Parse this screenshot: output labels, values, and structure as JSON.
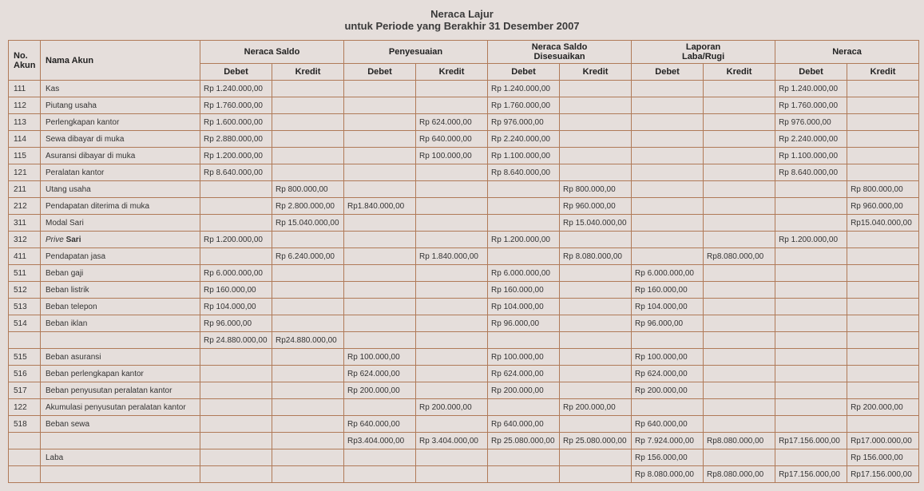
{
  "title_line1": "Neraca Lajur",
  "title_line2": "untuk Periode yang Berakhir  31 Desember 2007",
  "headers": {
    "no_akun": "No.\nAkun",
    "nama_akun": "Nama Akun",
    "groups": [
      "Neraca Saldo",
      "Penyesuaian",
      "Neraca Saldo\nDisesuaikan",
      "Laporan\nLaba/Rugi",
      "Neraca"
    ],
    "sub": {
      "debet": "Debet",
      "kredit": "Kredit"
    }
  },
  "rows": [
    {
      "no": "111",
      "name": "Kas",
      "ns_d": "Rp  1.240.000,00",
      "ns_k": "",
      "p_d": "",
      "p_k": "",
      "nsd_d": "Rp  1.240.000,00",
      "nsd_k": "",
      "lr_d": "",
      "lr_k": "",
      "n_d": "Rp  1.240.000,00",
      "n_k": ""
    },
    {
      "no": "112",
      "name": "Piutang usaha",
      "ns_d": "Rp  1.760.000,00",
      "ns_k": "",
      "p_d": "",
      "p_k": "",
      "nsd_d": "Rp  1.760.000,00",
      "nsd_k": "",
      "lr_d": "",
      "lr_k": "",
      "n_d": "Rp  1.760.000,00",
      "n_k": ""
    },
    {
      "no": "113",
      "name": "Perlengkapan kantor",
      "ns_d": "Rp  1.600.000,00",
      "ns_k": "",
      "p_d": "",
      "p_k": "Rp    624.000,00",
      "nsd_d": "Rp   976.000,00",
      "nsd_k": "",
      "lr_d": "",
      "lr_k": "",
      "n_d": "Rp    976.000,00",
      "n_k": ""
    },
    {
      "no": "114",
      "name": "Sewa dibayar di muka",
      "ns_d": "Rp  2.880.000,00",
      "ns_k": "",
      "p_d": "",
      "p_k": "Rp    640.000,00",
      "nsd_d": "Rp  2.240.000,00",
      "nsd_k": "",
      "lr_d": "",
      "lr_k": "",
      "n_d": "Rp  2.240.000,00",
      "n_k": ""
    },
    {
      "no": "115",
      "name": "Asuransi dibayar di muka",
      "ns_d": "Rp  1.200.000,00",
      "ns_k": "",
      "p_d": "",
      "p_k": "Rp    100.000,00",
      "nsd_d": "Rp  1.100.000,00",
      "nsd_k": "",
      "lr_d": "",
      "lr_k": "",
      "n_d": "Rp  1.100.000,00",
      "n_k": ""
    },
    {
      "no": "121",
      "name": "Peralatan kantor",
      "ns_d": "Rp  8.640.000,00",
      "ns_k": "",
      "p_d": "",
      "p_k": "",
      "nsd_d": "Rp  8.640.000,00",
      "nsd_k": "",
      "lr_d": "",
      "lr_k": "",
      "n_d": "Rp  8.640.000,00",
      "n_k": ""
    },
    {
      "no": "211",
      "name": "Utang usaha",
      "ns_d": "",
      "ns_k": "Rp    800.000,00",
      "p_d": "",
      "p_k": "",
      "nsd_d": "",
      "nsd_k": "Rp    800.000,00",
      "lr_d": "",
      "lr_k": "",
      "n_d": "",
      "n_k": "Rp     800.000,00"
    },
    {
      "no": "212",
      "name": "Pendapatan diterima di muka",
      "ns_d": "",
      "ns_k": "Rp  2.800.000,00",
      "p_d": "Rp1.840.000,00",
      "p_k": "",
      "nsd_d": "",
      "nsd_k": "Rp    960.000,00",
      "lr_d": "",
      "lr_k": "",
      "n_d": "",
      "n_k": "Rp     960.000,00"
    },
    {
      "no": "311",
      "name": "Modal Sari",
      "ns_d": "",
      "ns_k": "Rp 15.040.000,00",
      "p_d": "",
      "p_k": "",
      "nsd_d": "",
      "nsd_k": "Rp 15.040.000,00",
      "lr_d": "",
      "lr_k": "",
      "n_d": "",
      "n_k": "Rp15.040.000,00"
    },
    {
      "no": "312",
      "name": "Prive Sari",
      "ns_d": "Rp   1.200.000,00",
      "ns_k": "",
      "p_d": "",
      "p_k": "",
      "nsd_d": "Rp  1.200.000,00",
      "nsd_k": "",
      "lr_d": "",
      "lr_k": "",
      "n_d": "Rp  1.200.000,00",
      "n_k": "",
      "italic": true
    },
    {
      "no": "411",
      "name": "Pendapatan jasa",
      "ns_d": "",
      "ns_k": "Rp  6.240.000,00",
      "p_d": "",
      "p_k": "Rp  1.840.000,00",
      "nsd_d": "",
      "nsd_k": "Rp  8.080.000,00",
      "lr_d": "",
      "lr_k": "Rp8.080.000,00",
      "n_d": "",
      "n_k": ""
    },
    {
      "no": "511",
      "name": "Beban gaji",
      "ns_d": "Rp   6.000.000,00",
      "ns_k": "",
      "p_d": "",
      "p_k": "",
      "nsd_d": "Rp  6.000.000,00",
      "nsd_k": "",
      "lr_d": "Rp 6.000.000,00",
      "lr_k": "",
      "n_d": "",
      "n_k": ""
    },
    {
      "no": "512",
      "name": "Beban listrik",
      "ns_d": "Rp    160.000,00",
      "ns_k": "",
      "p_d": "",
      "p_k": "",
      "nsd_d": "Rp    160.000,00",
      "nsd_k": "",
      "lr_d": "Rp  160.000,00",
      "lr_k": "",
      "n_d": "",
      "n_k": ""
    },
    {
      "no": "513",
      "name": "Beban telepon",
      "ns_d": "Rp    104.000,00",
      "ns_k": "",
      "p_d": "",
      "p_k": "",
      "nsd_d": "Rp    104.000,00",
      "nsd_k": "",
      "lr_d": "Rp  104.000,00",
      "lr_k": "",
      "n_d": "",
      "n_k": ""
    },
    {
      "no": "514",
      "name": "Beban iklan",
      "ns_d": "Rp      96.000,00",
      "ns_k": "",
      "p_d": "",
      "p_k": "",
      "nsd_d": "Rp      96.000,00",
      "nsd_k": "",
      "lr_d": "Rp    96.000,00",
      "lr_k": "",
      "n_d": "",
      "n_k": ""
    },
    {
      "no": "",
      "name": "",
      "ns_d": "Rp 24.880.000,00",
      "ns_k": "Rp24.880.000,00",
      "p_d": "",
      "p_k": "",
      "nsd_d": "",
      "nsd_k": "",
      "lr_d": "",
      "lr_k": "",
      "n_d": "",
      "n_k": ""
    },
    {
      "no": "515",
      "name": "Beban asuransi",
      "ns_d": "",
      "ns_k": "",
      "p_d": "Rp  100.000,00",
      "p_k": "",
      "nsd_d": "Rp    100.000,00",
      "nsd_k": "",
      "lr_d": "Rp  100.000,00",
      "lr_k": "",
      "n_d": "",
      "n_k": ""
    },
    {
      "no": "516",
      "name": "Beban perlengkapan kantor",
      "ns_d": "",
      "ns_k": "",
      "p_d": "Rp  624.000,00",
      "p_k": "",
      "nsd_d": "Rp    624.000,00",
      "nsd_k": "",
      "lr_d": "Rp  624.000,00",
      "lr_k": "",
      "n_d": "",
      "n_k": ""
    },
    {
      "no": "517",
      "name": "Beban penyusutan peralatan kantor",
      "ns_d": "",
      "ns_k": "",
      "p_d": "Rp  200.000,00",
      "p_k": "",
      "nsd_d": "Rp    200.000,00",
      "nsd_k": "",
      "lr_d": "Rp  200.000,00",
      "lr_k": "",
      "n_d": "",
      "n_k": ""
    },
    {
      "no": "122",
      "name": "Akumulasi penyusutan peralatan kantor",
      "ns_d": "",
      "ns_k": "",
      "p_d": "",
      "p_k": "Rp    200.000,00",
      "nsd_d": "",
      "nsd_k": "Rp    200.000,00",
      "lr_d": "",
      "lr_k": "",
      "n_d": "",
      "n_k": "Rp     200.000,00"
    },
    {
      "no": "518",
      "name": "Beban sewa",
      "ns_d": "",
      "ns_k": "",
      "p_d": "Rp  640.000,00",
      "p_k": "",
      "nsd_d": "Rp    640.000,00",
      "nsd_k": "",
      "lr_d": "Rp  640.000,00",
      "lr_k": "",
      "n_d": "",
      "n_k": ""
    },
    {
      "no": "",
      "name": "",
      "ns_d": "",
      "ns_k": "",
      "p_d": "Rp3.404.000,00",
      "p_k": "Rp  3.404.000,00",
      "nsd_d": "Rp 25.080.000,00",
      "nsd_k": "Rp 25.080.000,00",
      "lr_d": "Rp 7.924.000,00",
      "lr_k": "Rp8.080.000,00",
      "n_d": "Rp17.156.000,00",
      "n_k": "Rp17.000.000,00"
    },
    {
      "no": "",
      "name": "Laba",
      "ns_d": "",
      "ns_k": "",
      "p_d": "",
      "p_k": "",
      "nsd_d": "",
      "nsd_k": "",
      "lr_d": "Rp  156.000,00",
      "lr_k": "",
      "n_d": "",
      "n_k": "Rp    156.000,00"
    },
    {
      "no": "",
      "name": "",
      "ns_d": "",
      "ns_k": "",
      "p_d": "",
      "p_k": "",
      "nsd_d": "",
      "nsd_k": "",
      "lr_d": "Rp 8.080.000,00",
      "lr_k": "Rp8.080.000,00",
      "n_d": "Rp17.156.000,00",
      "n_k": "Rp17.156.000,00"
    }
  ],
  "colors": {
    "border": "#b07a58",
    "background": "#e5dedb",
    "text": "#333333"
  }
}
